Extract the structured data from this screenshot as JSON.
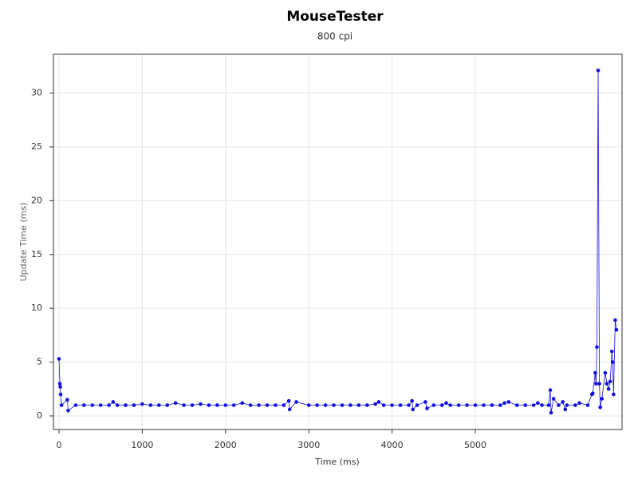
{
  "chart_data": {
    "type": "scatter-line",
    "title": "MouseTester",
    "subtitle": "800 cpi",
    "x_label": "Time (ms)",
    "y_label": "Update Time (ms)",
    "x": [
      0,
      10,
      15,
      20,
      30,
      100,
      110,
      200,
      300,
      400,
      500,
      600,
      650,
      700,
      800,
      900,
      1000,
      1100,
      1200,
      1300,
      1400,
      1500,
      1600,
      1700,
      1800,
      1900,
      2000,
      2100,
      2200,
      2300,
      2400,
      2500,
      2600,
      2700,
      2760,
      2770,
      2850,
      3000,
      3100,
      3200,
      3300,
      3400,
      3500,
      3600,
      3700,
      3800,
      3840,
      3900,
      4000,
      4100,
      4200,
      4240,
      4250,
      4300,
      4400,
      4420,
      4500,
      4600,
      4650,
      4700,
      4800,
      4900,
      5000,
      5100,
      5200,
      5300,
      5350,
      5400,
      5500,
      5600,
      5700,
      5750,
      5800,
      5880,
      5900,
      5910,
      5940,
      6000,
      6050,
      6080,
      6100,
      6200,
      6250,
      6350,
      6400,
      6410,
      6440,
      6450,
      6460,
      6475,
      6490,
      6500,
      6520,
      6560,
      6580,
      6600,
      6620,
      6640,
      6650,
      6660,
      6680,
      6695
    ],
    "series": [
      {
        "name": "Update Time",
        "color": "#1010e0",
        "values": [
          5.3,
          3.0,
          2.7,
          2.0,
          1.0,
          1.5,
          0.5,
          1.0,
          1.0,
          1.0,
          1.0,
          1.0,
          1.3,
          1.0,
          1.0,
          1.0,
          1.1,
          1.0,
          1.0,
          1.0,
          1.2,
          1.0,
          1.0,
          1.1,
          1.0,
          1.0,
          1.0,
          1.0,
          1.2,
          1.0,
          1.0,
          1.0,
          1.0,
          1.0,
          1.4,
          0.6,
          1.3,
          1.0,
          1.0,
          1.0,
          1.0,
          1.0,
          1.0,
          1.0,
          1.0,
          1.1,
          1.3,
          1.0,
          1.0,
          1.0,
          1.0,
          1.4,
          0.6,
          1.0,
          1.3,
          0.7,
          1.0,
          1.0,
          1.2,
          1.0,
          1.0,
          1.0,
          1.0,
          1.0,
          1.0,
          1.0,
          1.2,
          1.3,
          1.0,
          1.0,
          1.0,
          1.2,
          1.0,
          1.0,
          2.4,
          0.3,
          1.6,
          1.0,
          1.3,
          0.6,
          1.0,
          1.0,
          1.2,
          1.0,
          2.0,
          2.1,
          4.0,
          3.0,
          6.4,
          32.1,
          3.0,
          0.8,
          1.6,
          4.0,
          3.0,
          2.5,
          3.2,
          6.0,
          5.0,
          2.0,
          8.9,
          8.0
        ]
      }
    ],
    "xlim": [
      -67,
      6762
    ],
    "ylim": [
      -1.26,
      33.6
    ],
    "xticks": [
      0,
      1000,
      2000,
      3000,
      4000,
      5000
    ],
    "yticks": [
      0,
      5,
      10,
      15,
      20,
      25,
      30
    ],
    "grid": true
  }
}
